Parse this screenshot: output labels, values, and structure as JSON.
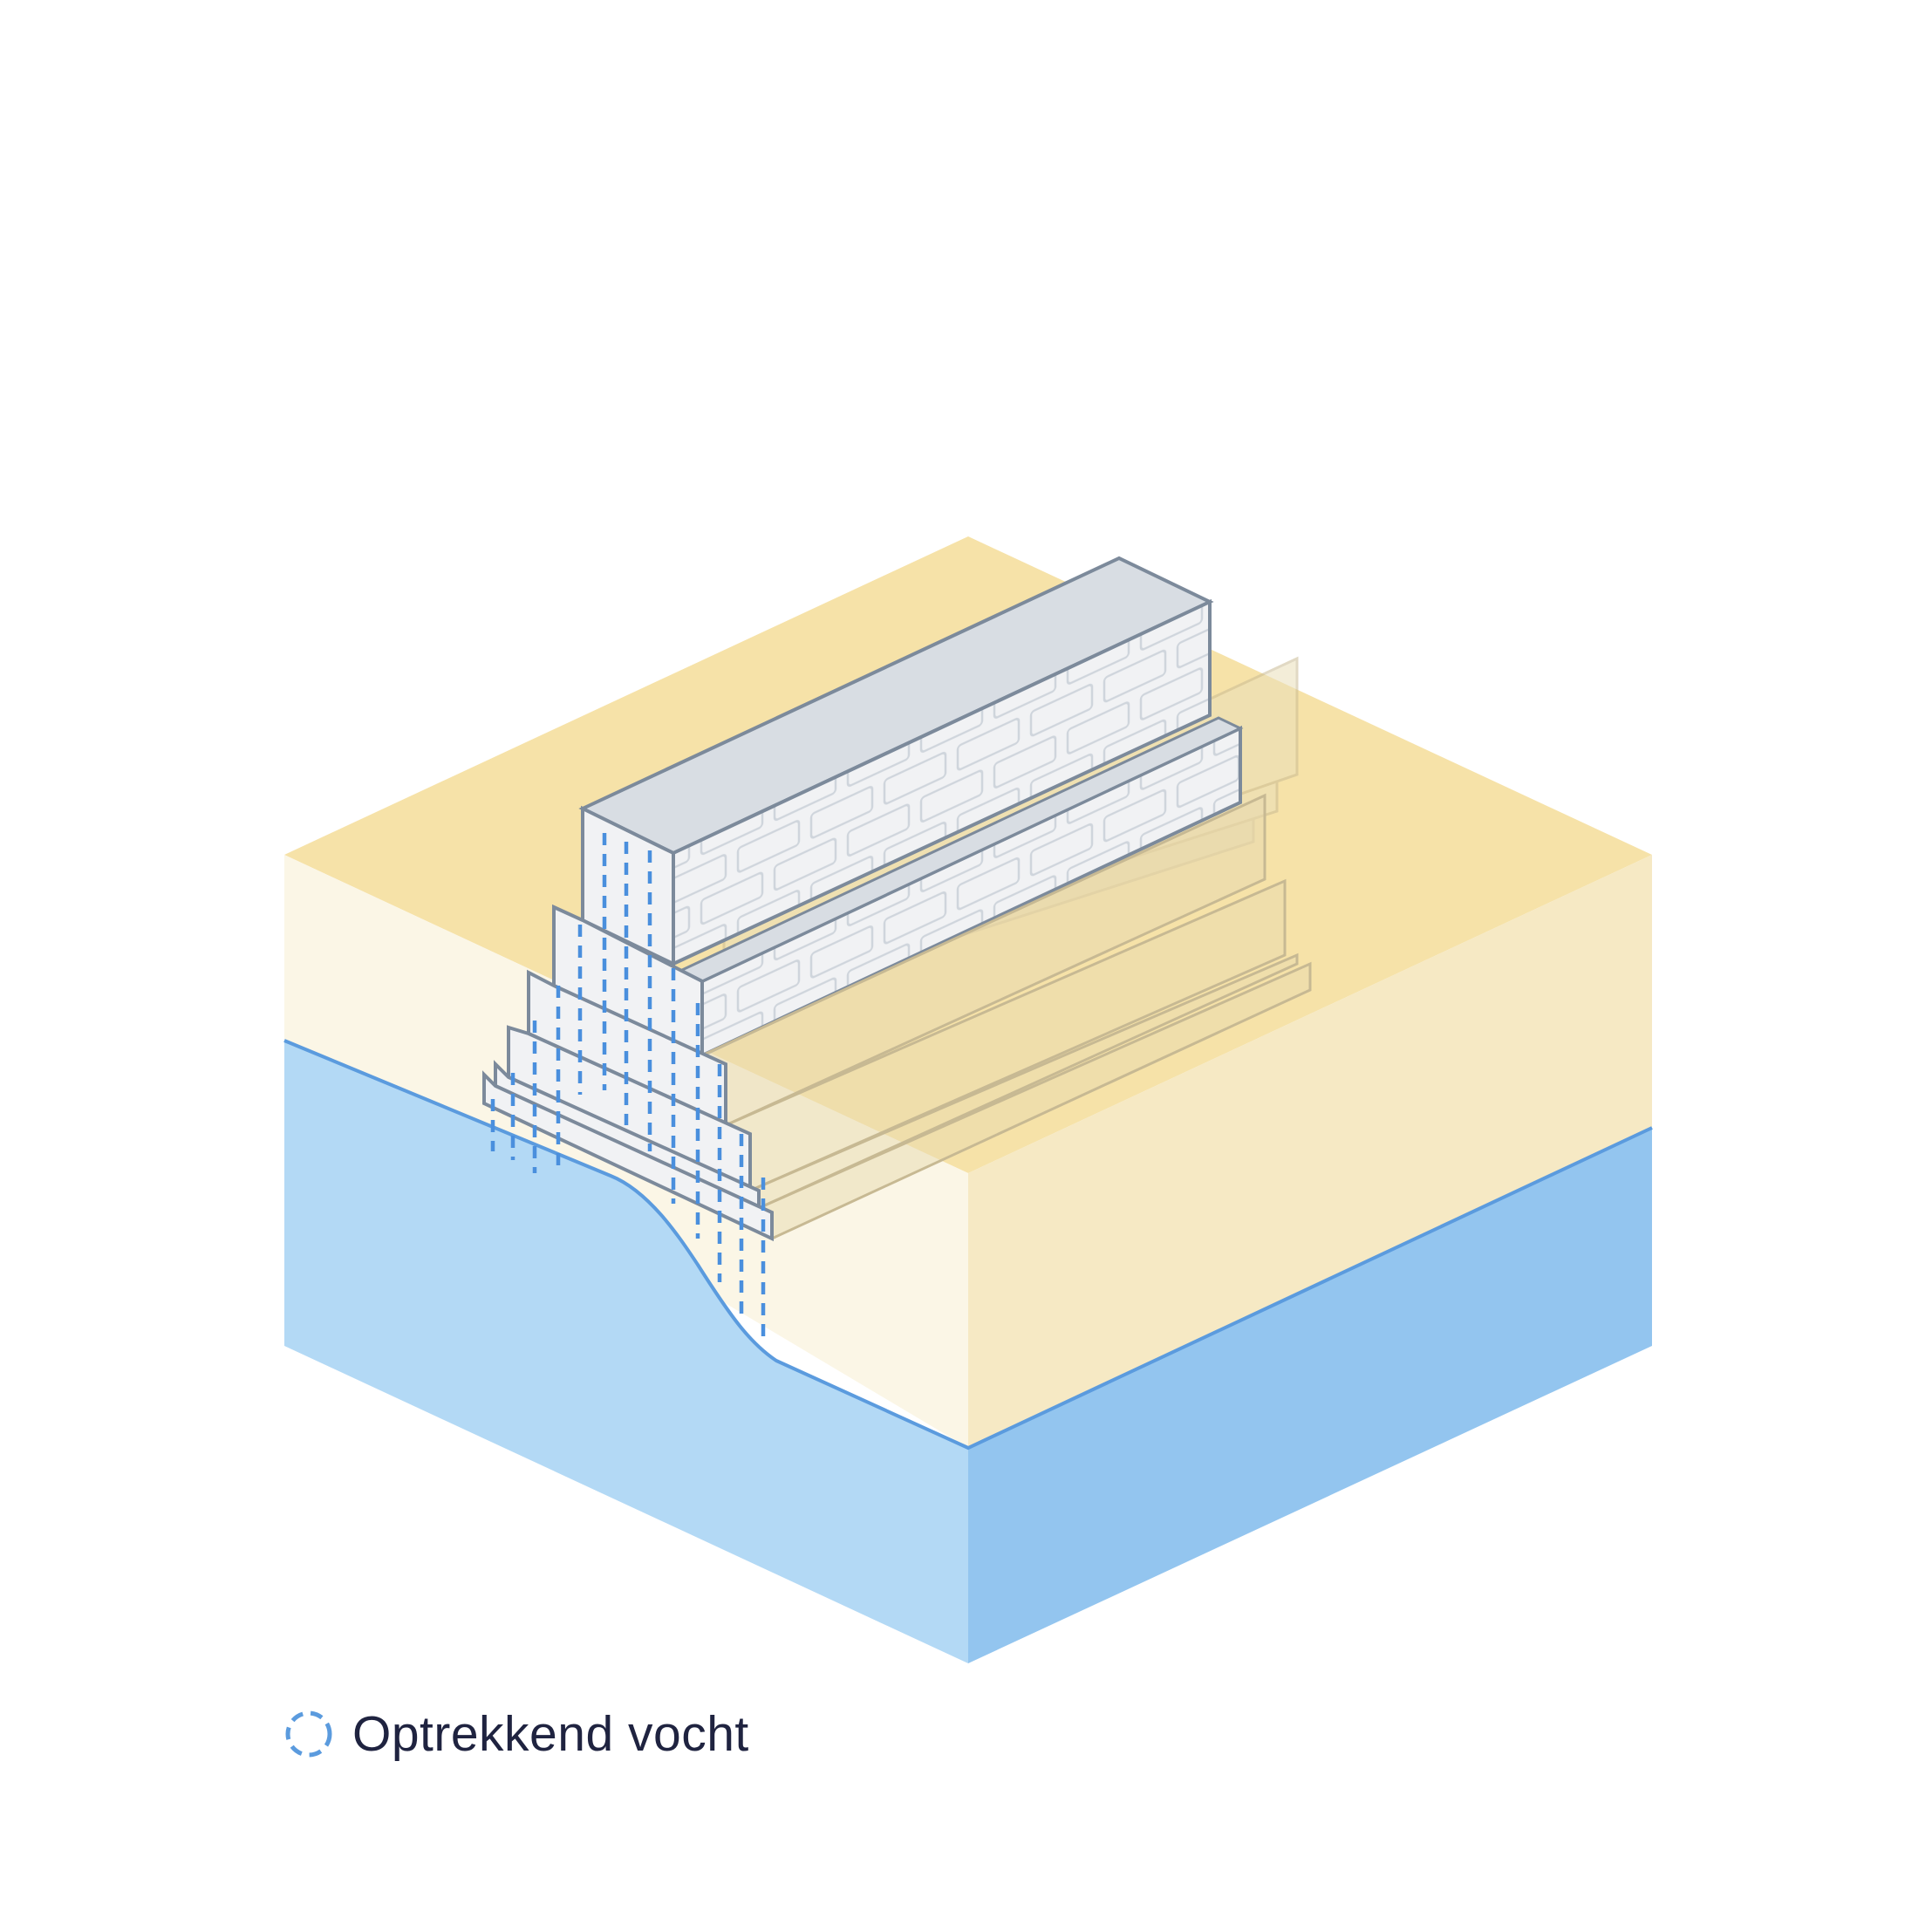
{
  "legend": {
    "label": "Optrekkend vocht",
    "icon": "dashed-circle-icon"
  },
  "colors": {
    "sand_top": "#f6e2a8",
    "sand_left": "#fbf6e6",
    "sand_right": "#f6e9c4",
    "water_left": "#b3d9f5",
    "water_right": "#93c5ef",
    "water_line": "#5b9bde",
    "wall_top": "#d8dde3",
    "wall_face": "#f1f2f4",
    "wall_stroke": "#7c8a9b",
    "brick_line": "#cdd3da",
    "moisture": "#4a8fdd"
  }
}
